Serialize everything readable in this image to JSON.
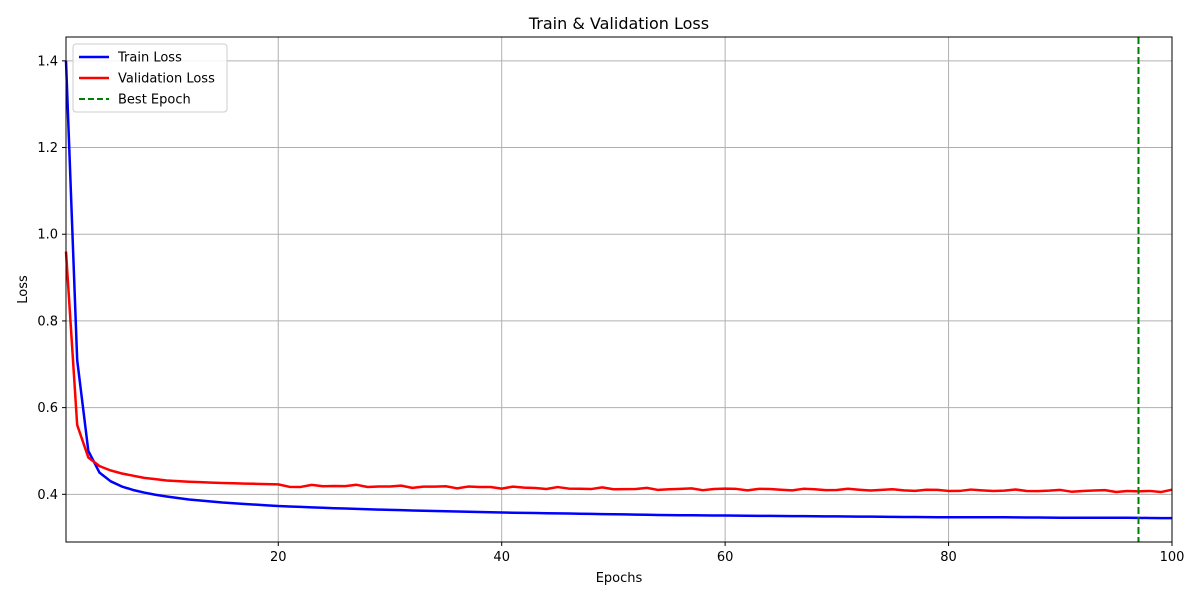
{
  "chart_data": {
    "type": "line",
    "title": "Train & Validation Loss",
    "xlabel": "Epochs",
    "ylabel": "Loss",
    "xlim": [
      1,
      100
    ],
    "ylim": [
      0.29,
      1.455
    ],
    "xticks": [
      20,
      40,
      60,
      80,
      100
    ],
    "yticks": [
      0.4,
      0.6,
      0.8,
      1.0,
      1.2,
      1.4
    ],
    "xtick_labels": [
      "20",
      "40",
      "60",
      "80",
      "100"
    ],
    "ytick_labels": [
      "0.4",
      "0.6",
      "0.8",
      "1.0",
      "1.2",
      "1.4"
    ],
    "grid": true,
    "legend_position": "upper-left",
    "series": [
      {
        "name": "Train Loss",
        "color": "#0000ff",
        "style": "solid",
        "anchors": [
          [
            1,
            1.4
          ],
          [
            2,
            0.71
          ],
          [
            3,
            0.5
          ],
          [
            4,
            0.45
          ],
          [
            5,
            0.43
          ],
          [
            6,
            0.418
          ],
          [
            7,
            0.41
          ],
          [
            8,
            0.404
          ],
          [
            9,
            0.399
          ],
          [
            10,
            0.395
          ],
          [
            12,
            0.388
          ],
          [
            15,
            0.381
          ],
          [
            20,
            0.373
          ],
          [
            25,
            0.368
          ],
          [
            30,
            0.364
          ],
          [
            35,
            0.361
          ],
          [
            40,
            0.358
          ],
          [
            45,
            0.356
          ],
          [
            50,
            0.354
          ],
          [
            55,
            0.352
          ],
          [
            60,
            0.351
          ],
          [
            65,
            0.35
          ],
          [
            70,
            0.349
          ],
          [
            75,
            0.348
          ],
          [
            80,
            0.347
          ],
          [
            85,
            0.347
          ],
          [
            90,
            0.346
          ],
          [
            95,
            0.346
          ],
          [
            100,
            0.345
          ]
        ]
      },
      {
        "name": "Validation Loss",
        "color": "#ff0000",
        "style": "solid",
        "anchors": [
          [
            1,
            0.96
          ],
          [
            2,
            0.56
          ],
          [
            3,
            0.485
          ],
          [
            4,
            0.465
          ],
          [
            5,
            0.455
          ],
          [
            6,
            0.448
          ],
          [
            7,
            0.443
          ],
          [
            8,
            0.438
          ],
          [
            9,
            0.435
          ],
          [
            10,
            0.432
          ],
          [
            12,
            0.429
          ],
          [
            15,
            0.426
          ],
          [
            20,
            0.423
          ],
          [
            21,
            0.418
          ],
          [
            25,
            0.42
          ],
          [
            30,
            0.418
          ],
          [
            35,
            0.417
          ],
          [
            40,
            0.416
          ],
          [
            45,
            0.414
          ],
          [
            50,
            0.413
          ],
          [
            55,
            0.412
          ],
          [
            60,
            0.412
          ],
          [
            65,
            0.411
          ],
          [
            70,
            0.411
          ],
          [
            75,
            0.41
          ],
          [
            80,
            0.409
          ],
          [
            85,
            0.409
          ],
          [
            90,
            0.408
          ],
          [
            95,
            0.408
          ],
          [
            97,
            0.406
          ],
          [
            100,
            0.409
          ]
        ]
      }
    ],
    "vlines": [
      {
        "name": "Best Epoch",
        "x": 97,
        "color": "#008000",
        "style": "dashed"
      }
    ]
  }
}
